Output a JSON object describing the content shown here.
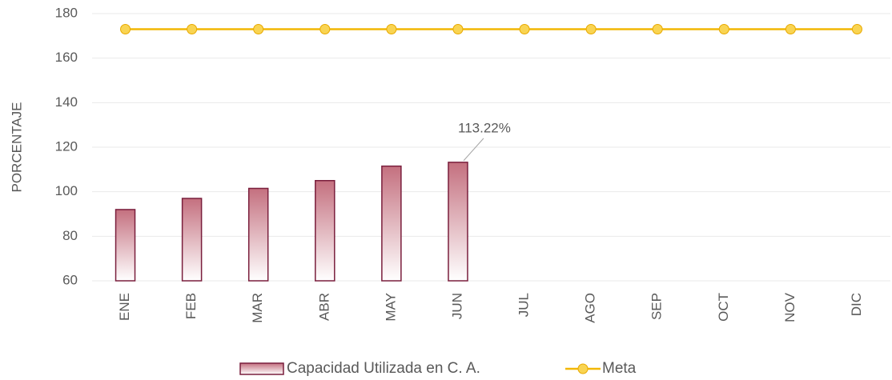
{
  "chart_data": {
    "type": "bar",
    "y_label": "PORCENTAJE",
    "categories": [
      "ENE",
      "FEB",
      "MAR",
      "ABR",
      "MAY",
      "JUN",
      "JUL",
      "AGO",
      "SEP",
      "OCT",
      "NOV",
      "DIC"
    ],
    "series": [
      {
        "name": "Capacidad Utilizada en C. A.",
        "type": "bar",
        "color": "#7a1f3d",
        "values": [
          92,
          97,
          101.5,
          105,
          111.5,
          113.22,
          null,
          null,
          null,
          null,
          null,
          null
        ],
        "value_labels": [
          null,
          null,
          null,
          null,
          null,
          "113.22%",
          null,
          null,
          null,
          null,
          null,
          null
        ]
      },
      {
        "name": "Meta",
        "type": "line",
        "color": "#f2b705",
        "values": [
          173,
          173,
          173,
          173,
          173,
          173,
          173,
          173,
          173,
          173,
          173,
          173
        ]
      }
    ],
    "ylim": [
      60,
      180
    ],
    "yticks": [
      60,
      80,
      100,
      120,
      140,
      160,
      180
    ],
    "grid": true,
    "legend": "bottom"
  }
}
